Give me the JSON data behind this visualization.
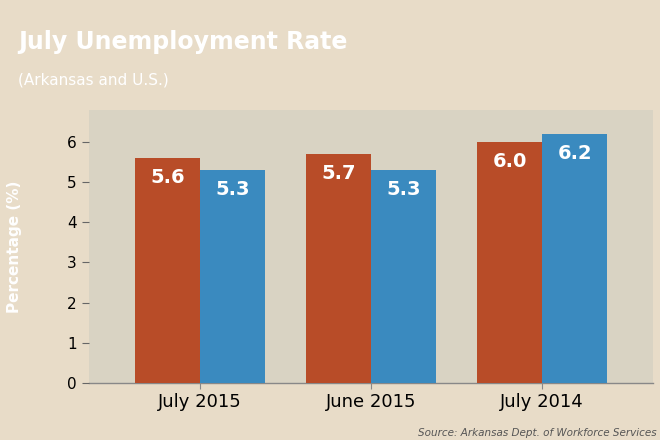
{
  "title_line1": "July Unemployment Rate",
  "title_line2": "(Arkansas and U.S.)",
  "ylabel": "Percentage (%)",
  "source": "Source: Arkansas Dept. of Workforce Services",
  "categories": [
    "July 2015",
    "June 2015",
    "July 2014"
  ],
  "ark_values": [
    5.6,
    5.7,
    6.0
  ],
  "us_values": [
    5.3,
    5.3,
    6.2
  ],
  "ark_color": "#b84c28",
  "us_color": "#3a8abf",
  "bar_width": 0.38,
  "ylim": [
    0,
    6.8
  ],
  "yticks": [
    0,
    1,
    2,
    3,
    4,
    5,
    6
  ],
  "background_fig": "#e8dcc8",
  "background_chart": "#d9d3c3",
  "white_yaxis_bg": "#f0ece0",
  "header_bg": "#3a8abf",
  "header_text_color": "#ffffff",
  "ylabel_bg": "#3a8abf",
  "label_fontsize": 13,
  "value_fontsize": 14,
  "tick_fontsize": 11,
  "source_fontsize": 7.5,
  "ylabel_fontsize": 11,
  "title_fontsize1": 17,
  "title_fontsize2": 11
}
